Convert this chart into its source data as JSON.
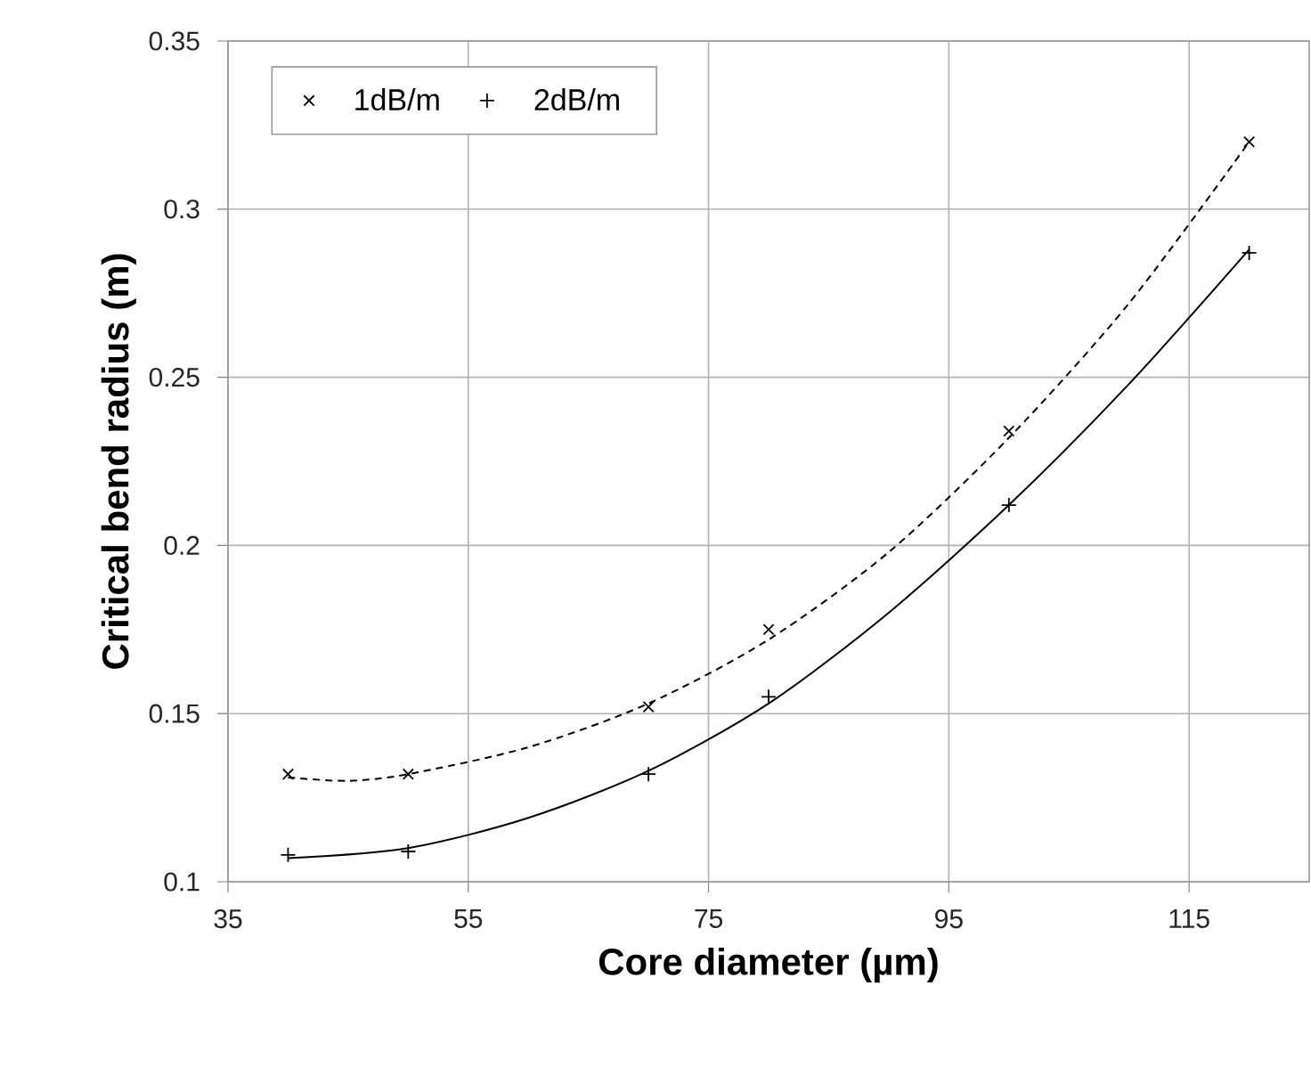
{
  "chart_data": {
    "type": "scatter",
    "xlabel": "Core diameter (µm)",
    "ylabel": "Critical bend radius (m)",
    "xlim": [
      35,
      125
    ],
    "xticks": [
      35,
      55,
      75,
      95,
      115
    ],
    "ylim": [
      0.1,
      0.35
    ],
    "yticks": [
      0.1,
      0.15,
      0.2,
      0.25,
      0.3,
      0.35
    ],
    "grid": true,
    "legend": "top left",
    "series": [
      {
        "name": "1dB/m",
        "marker": "cross",
        "color": "#000000",
        "x": [
          40,
          50,
          70,
          80,
          100,
          120
        ],
        "values": [
          0.132,
          0.132,
          0.152,
          0.175,
          0.234,
          0.32
        ]
      },
      {
        "name": "2dB/m",
        "marker": "plus",
        "color": "#000000",
        "x": [
          40,
          50,
          70,
          80,
          100,
          120
        ],
        "values": [
          0.108,
          0.109,
          0.132,
          0.155,
          0.212,
          0.287
        ]
      },
      {
        "type": "line",
        "line_style": "dashed",
        "marker": "none",
        "color": "#000000",
        "x": [
          40,
          45,
          50,
          60,
          70,
          80,
          90,
          100,
          110,
          120
        ],
        "values": [
          0.131,
          0.13,
          0.132,
          0.14,
          0.153,
          0.172,
          0.198,
          0.232,
          0.272,
          0.32
        ]
      },
      {
        "type": "line",
        "line_style": "solid",
        "marker": "none",
        "color": "#000000",
        "x": [
          40,
          50,
          60,
          70,
          80,
          90,
          100,
          110,
          120
        ],
        "values": [
          0.107,
          0.11,
          0.119,
          0.133,
          0.153,
          0.18,
          0.212,
          0.248,
          0.288
        ]
      }
    ]
  }
}
